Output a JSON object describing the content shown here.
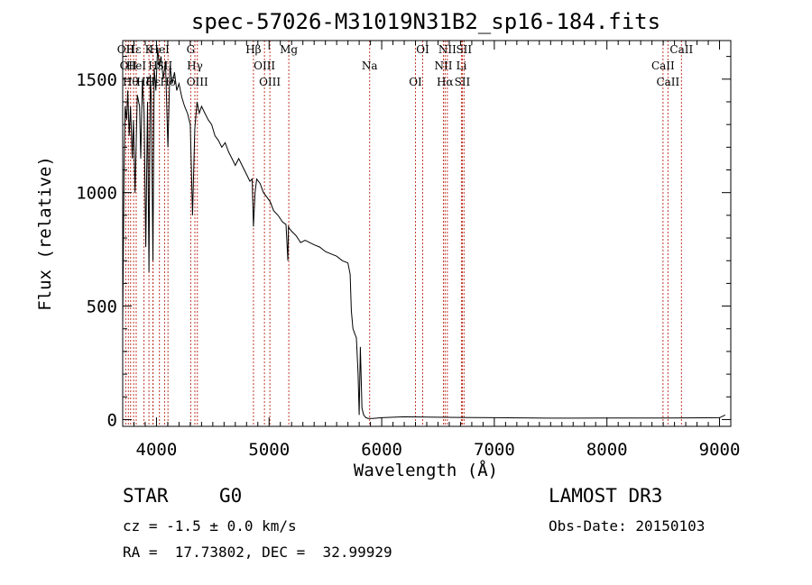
{
  "chart_data": {
    "type": "line",
    "title": "spec-57026-M31019N31B2_sp16-184.fits",
    "xlabel": "Wavelength (Å)",
    "ylabel": "Flux (relative)",
    "xlim": [
      3700,
      9100
    ],
    "ylim": [
      -30,
      1670
    ],
    "x_ticks": [
      4000,
      5000,
      6000,
      7000,
      8000,
      9000
    ],
    "x_tick_labels": [
      "4000",
      "5000",
      "6000",
      "7000",
      "8000",
      "9000"
    ],
    "y_ticks": [
      0,
      500,
      1000,
      1500
    ],
    "y_tick_labels": [
      "0",
      "500",
      "1000",
      "1500"
    ],
    "grid": false,
    "series": [
      {
        "name": "flux",
        "x": [
          3700,
          3712,
          3722,
          3735,
          3745,
          3758,
          3770,
          3785,
          3795,
          3810,
          3830,
          3850,
          3860,
          3875,
          3890,
          3905,
          3920,
          3933,
          3945,
          3955,
          3968,
          3980,
          3995,
          4010,
          4025,
          4040,
          4060,
          4080,
          4101,
          4120,
          4140,
          4160,
          4180,
          4200,
          4225,
          4250,
          4275,
          4300,
          4320,
          4340,
          4360,
          4380,
          4400,
          4430,
          4460,
          4490,
          4520,
          4550,
          4580,
          4610,
          4640,
          4670,
          4700,
          4730,
          4760,
          4800,
          4830,
          4850,
          4861,
          4875,
          4890,
          4920,
          4950,
          4980,
          5010,
          5040,
          5080,
          5120,
          5150,
          5167,
          5172,
          5183,
          5200,
          5240,
          5280,
          5320,
          5360,
          5400,
          5450,
          5500,
          5550,
          5600,
          5650,
          5700,
          5720,
          5730,
          5745,
          5760,
          5775,
          5790,
          5800,
          5810,
          5825,
          5840,
          5860,
          5880,
          5895,
          5920,
          6000,
          6200,
          6500,
          7000,
          7500,
          8000,
          8500,
          9000,
          9050
        ],
        "y": [
          420,
          1100,
          1380,
          1320,
          1450,
          1250,
          1380,
          1150,
          1320,
          1000,
          1430,
          1380,
          1150,
          1500,
          1350,
          760,
          1400,
          650,
          1520,
          1400,
          700,
          1550,
          1450,
          1640,
          1550,
          1600,
          1500,
          1580,
          1200,
          1560,
          1480,
          1530,
          1450,
          1480,
          1420,
          1380,
          1350,
          1300,
          900,
          1280,
          1400,
          1350,
          1380,
          1350,
          1320,
          1300,
          1250,
          1230,
          1200,
          1220,
          1180,
          1150,
          1120,
          1150,
          1120,
          1080,
          1050,
          1060,
          850,
          1000,
          1060,
          1040,
          1000,
          980,
          960,
          920,
          900,
          870,
          860,
          700,
          850,
          840,
          830,
          810,
          780,
          790,
          780,
          770,
          760,
          740,
          730,
          720,
          700,
          690,
          640,
          480,
          400,
          380,
          360,
          200,
          20,
          320,
          50,
          20,
          8,
          5,
          5,
          5,
          8,
          12,
          10,
          8,
          6,
          7,
          7,
          8,
          20
        ]
      }
    ],
    "line_labels": [
      {
        "wavelength": 3727,
        "label": "OII"
      },
      {
        "wavelength": 3750,
        "label": "OII"
      },
      {
        "wavelength": 3770,
        "label": "Hθ"
      },
      {
        "wavelength": 3797,
        "label": "Hε"
      },
      {
        "wavelength": 3820,
        "label": "HeI"
      },
      {
        "wavelength": 3889,
        "label": "Hζ"
      },
      {
        "wavelength": 3933,
        "label": "K"
      },
      {
        "wavelength": 3968,
        "label": "H"
      },
      {
        "wavelength": 3970,
        "label": "Hε"
      },
      {
        "wavelength": 4026,
        "label": "HeI"
      },
      {
        "wavelength": 4072,
        "label": "SII"
      },
      {
        "wavelength": 4102,
        "label": "Hδ"
      },
      {
        "wavelength": 4304,
        "label": "G"
      },
      {
        "wavelength": 4341,
        "label": "Hγ"
      },
      {
        "wavelength": 4363,
        "label": "OIII"
      },
      {
        "wavelength": 4861,
        "label": "Hβ"
      },
      {
        "wavelength": 4959,
        "label": "OIII"
      },
      {
        "wavelength": 5007,
        "label": "OIII"
      },
      {
        "wavelength": 5175,
        "label": "Mg"
      },
      {
        "wavelength": 5893,
        "label": "Na"
      },
      {
        "wavelength": 6300,
        "label": "OI"
      },
      {
        "wavelength": 6364,
        "label": "OI"
      },
      {
        "wavelength": 6548,
        "label": "NII"
      },
      {
        "wavelength": 6563,
        "label": "Hα"
      },
      {
        "wavelength": 6583,
        "label": "NII"
      },
      {
        "wavelength": 6708,
        "label": "Li"
      },
      {
        "wavelength": 6716,
        "label": "SII"
      },
      {
        "wavelength": 6731,
        "label": "SII"
      },
      {
        "wavelength": 8498,
        "label": "CaII"
      },
      {
        "wavelength": 8542,
        "label": "CaII"
      },
      {
        "wavelength": 8662,
        "label": "CaII"
      }
    ]
  },
  "info": {
    "class_label": "STAR",
    "subclass_label": "G0",
    "cz_line": "cz = -1.5 ± 0.0 km/s",
    "coords_line": "RA =  17.73802, DEC =  32.99929",
    "survey": "LAMOST DR3",
    "obs_date": "Obs-Date: 20150103"
  },
  "colors": {
    "line_marker": "#c0392b",
    "spectrum": "#000000",
    "axes": "#000000"
  }
}
